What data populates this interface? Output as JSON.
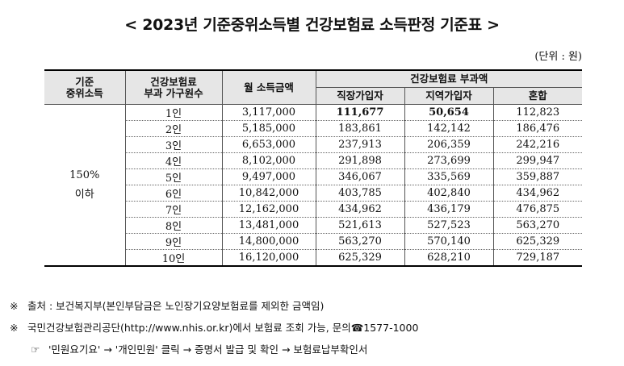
{
  "title": "< 2023년 기준중위소득별 건강보험료 소득판정 기준표 >",
  "unit": "(단위 : 원)",
  "headers": {
    "col1_line1": "기준",
    "col1_line2": "중위소득",
    "col2_line1": "건강보험료",
    "col2_line2": "부과 가구원수",
    "col3": "월 소득금액",
    "group": "건강보험료 부과액",
    "col4": "직장가입자",
    "col5": "지역가입자",
    "col6": "혼합"
  },
  "group_label": {
    "line1": "150%",
    "line2": "이하"
  },
  "rows": [
    {
      "members": "1인",
      "income": "3,117,000",
      "employee": "111,677",
      "regional": "50,654",
      "mixed": "112,823"
    },
    {
      "members": "2인",
      "income": "5,185,000",
      "employee": "183,861",
      "regional": "142,142",
      "mixed": "186,476"
    },
    {
      "members": "3인",
      "income": "6,653,000",
      "employee": "237,913",
      "regional": "206,359",
      "mixed": "242,216"
    },
    {
      "members": "4인",
      "income": "8,102,000",
      "employee": "291,898",
      "regional": "273,699",
      "mixed": "299,947"
    },
    {
      "members": "5인",
      "income": "9,497,000",
      "employee": "346,067",
      "regional": "335,569",
      "mixed": "359,887"
    },
    {
      "members": "6인",
      "income": "10,842,000",
      "employee": "403,785",
      "regional": "402,840",
      "mixed": "434,962"
    },
    {
      "members": "7인",
      "income": "12,162,000",
      "employee": "434,962",
      "regional": "436,179",
      "mixed": "476,875"
    },
    {
      "members": "8인",
      "income": "13,481,000",
      "employee": "521,613",
      "regional": "527,523",
      "mixed": "563,270"
    },
    {
      "members": "9인",
      "income": "14,800,000",
      "employee": "563,270",
      "regional": "570,140",
      "mixed": "625,329"
    },
    {
      "members": "10인",
      "income": "16,120,000",
      "employee": "625,329",
      "regional": "628,210",
      "mixed": "729,187"
    }
  ],
  "notes": {
    "note1_mark": "※",
    "note1": "출처 : 보건복지부(본인부담금은 노인장기요양보험료를 제외한 금액임)",
    "note2_mark": "※",
    "note2": "국민건강보험관리공단(http://www.nhis.or.kr)에서 보험료 조회 가능, 문의☎1577-1000",
    "note3_mark": "☞",
    "note3": "'민원요기요' → '개인민원' 클릭 → 증명서 발급 및 확인 → 보험료납부확인서"
  }
}
